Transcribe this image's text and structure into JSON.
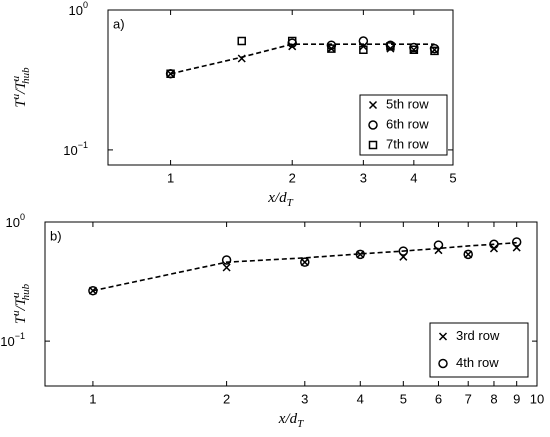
{
  "chart_data": [
    {
      "type": "scatter",
      "panel_label": "a)",
      "xlabel": [
        "x/d",
        "T"
      ],
      "ylabel": [
        "T",
        "u",
        "/T",
        "u",
        "hub"
      ],
      "xlog": true,
      "ylog": true,
      "legend": "lower right",
      "xlim": [
        0.7,
        5
      ],
      "ylim": [
        0.078,
        1
      ],
      "xticks": [
        1,
        2,
        3,
        4,
        5
      ],
      "yticks": [
        {
          "value": 0.1,
          "label": "10",
          "sup": "−1"
        },
        {
          "value": 1,
          "label": "10",
          "sup": "0"
        }
      ],
      "series": [
        {
          "name": "5th row",
          "marker": "x",
          "color": "#000",
          "x": [
            1,
            1.5,
            2,
            2.5,
            3,
            3.5,
            4,
            4.5
          ],
          "values": [
            0.35,
            0.45,
            0.55,
            0.53,
            0.55,
            0.53,
            0.52,
            0.52
          ]
        },
        {
          "name": "6th row",
          "marker": "o",
          "color": "#000",
          "x": [
            1,
            2,
            2.5,
            3,
            3.5,
            4,
            4.5
          ],
          "values": [
            0.35,
            0.58,
            0.56,
            0.6,
            0.56,
            0.54,
            0.53
          ]
        },
        {
          "name": "7th row",
          "marker": "s",
          "color": "#000",
          "x": [
            1,
            1.5,
            2,
            2.5,
            3,
            3.5,
            4,
            4.5
          ],
          "values": [
            0.35,
            0.6,
            0.6,
            0.53,
            0.52,
            0.55,
            0.52,
            0.51
          ]
        }
      ],
      "fit": {
        "x": [
          1,
          1.5,
          2,
          2.5,
          3,
          3.5,
          4,
          4.5
        ],
        "values": [
          0.35,
          0.46,
          0.57,
          0.57,
          0.57,
          0.57,
          0.57,
          0.57
        ]
      }
    },
    {
      "type": "scatter",
      "panel_label": "b)",
      "xlabel": [
        "x/d",
        "T"
      ],
      "ylabel": [
        "T",
        "u",
        "/T",
        "u",
        "hub"
      ],
      "xlog": true,
      "ylog": true,
      "legend": "lower right",
      "xlim": [
        0.78,
        10
      ],
      "ylim": [
        0.042,
        1
      ],
      "xticks": [
        1,
        2,
        3,
        4,
        5,
        6,
        7,
        8,
        9,
        10
      ],
      "yticks": [
        {
          "value": 0.1,
          "label": "10",
          "sup": "−1"
        },
        {
          "value": 1,
          "label": "10",
          "sup": "0"
        }
      ],
      "series": [
        {
          "name": "3rd row",
          "marker": "x",
          "color": "#000",
          "x": [
            1,
            2,
            3,
            4,
            5,
            6,
            7,
            8,
            9
          ],
          "values": [
            0.265,
            0.415,
            0.46,
            0.535,
            0.51,
            0.58,
            0.535,
            0.6,
            0.61
          ]
        },
        {
          "name": "4th row",
          "marker": "o",
          "color": "#000",
          "x": [
            1,
            2,
            3,
            4,
            5,
            6,
            7,
            8,
            9
          ],
          "values": [
            0.265,
            0.48,
            0.46,
            0.535,
            0.57,
            0.64,
            0.535,
            0.65,
            0.68
          ]
        }
      ],
      "fit": {
        "x": [
          1,
          2,
          3,
          4,
          5,
          6,
          7,
          8,
          9
        ],
        "values": [
          0.265,
          0.46,
          0.5,
          0.54,
          0.57,
          0.6,
          0.63,
          0.65,
          0.67
        ]
      }
    }
  ]
}
